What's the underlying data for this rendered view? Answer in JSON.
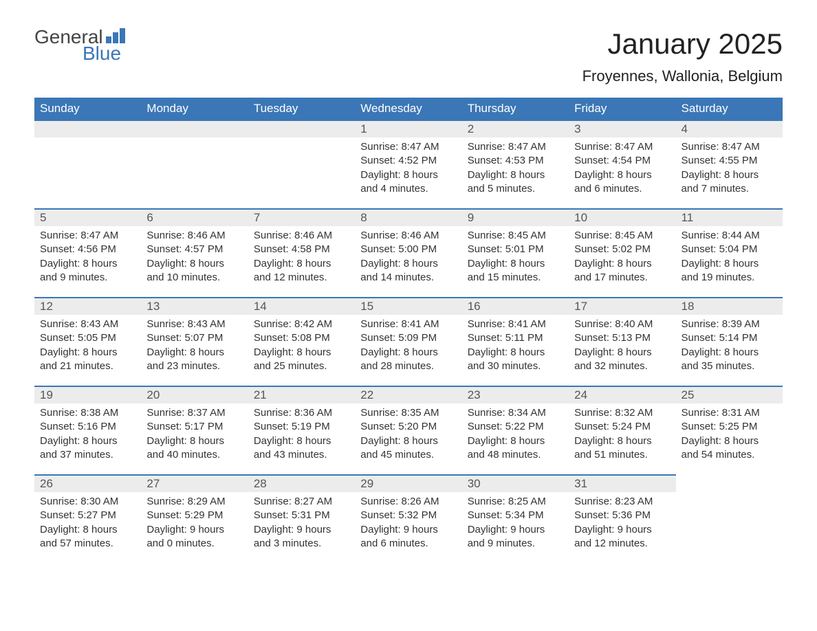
{
  "logo": {
    "text_general": "General",
    "text_blue": "Blue",
    "bar_color": "#3b77b6"
  },
  "header": {
    "month_title": "January 2025",
    "location": "Froyennes, Wallonia, Belgium"
  },
  "colors": {
    "header_bg": "#3b77b6",
    "header_text": "#ffffff",
    "date_bar_bg": "#ececec",
    "date_bar_border": "#3b77b6",
    "body_bg": "#ffffff",
    "text": "#333333"
  },
  "weekdays": [
    "Sunday",
    "Monday",
    "Tuesday",
    "Wednesday",
    "Thursday",
    "Friday",
    "Saturday"
  ],
  "weeks": [
    [
      {
        "date": "",
        "sunrise": "",
        "sunset": "",
        "daylight": ""
      },
      {
        "date": "",
        "sunrise": "",
        "sunset": "",
        "daylight": ""
      },
      {
        "date": "",
        "sunrise": "",
        "sunset": "",
        "daylight": ""
      },
      {
        "date": "1",
        "sunrise": "Sunrise: 8:47 AM",
        "sunset": "Sunset: 4:52 PM",
        "daylight": "Daylight: 8 hours and 4 minutes."
      },
      {
        "date": "2",
        "sunrise": "Sunrise: 8:47 AM",
        "sunset": "Sunset: 4:53 PM",
        "daylight": "Daylight: 8 hours and 5 minutes."
      },
      {
        "date": "3",
        "sunrise": "Sunrise: 8:47 AM",
        "sunset": "Sunset: 4:54 PM",
        "daylight": "Daylight: 8 hours and 6 minutes."
      },
      {
        "date": "4",
        "sunrise": "Sunrise: 8:47 AM",
        "sunset": "Sunset: 4:55 PM",
        "daylight": "Daylight: 8 hours and 7 minutes."
      }
    ],
    [
      {
        "date": "5",
        "sunrise": "Sunrise: 8:47 AM",
        "sunset": "Sunset: 4:56 PM",
        "daylight": "Daylight: 8 hours and 9 minutes."
      },
      {
        "date": "6",
        "sunrise": "Sunrise: 8:46 AM",
        "sunset": "Sunset: 4:57 PM",
        "daylight": "Daylight: 8 hours and 10 minutes."
      },
      {
        "date": "7",
        "sunrise": "Sunrise: 8:46 AM",
        "sunset": "Sunset: 4:58 PM",
        "daylight": "Daylight: 8 hours and 12 minutes."
      },
      {
        "date": "8",
        "sunrise": "Sunrise: 8:46 AM",
        "sunset": "Sunset: 5:00 PM",
        "daylight": "Daylight: 8 hours and 14 minutes."
      },
      {
        "date": "9",
        "sunrise": "Sunrise: 8:45 AM",
        "sunset": "Sunset: 5:01 PM",
        "daylight": "Daylight: 8 hours and 15 minutes."
      },
      {
        "date": "10",
        "sunrise": "Sunrise: 8:45 AM",
        "sunset": "Sunset: 5:02 PM",
        "daylight": "Daylight: 8 hours and 17 minutes."
      },
      {
        "date": "11",
        "sunrise": "Sunrise: 8:44 AM",
        "sunset": "Sunset: 5:04 PM",
        "daylight": "Daylight: 8 hours and 19 minutes."
      }
    ],
    [
      {
        "date": "12",
        "sunrise": "Sunrise: 8:43 AM",
        "sunset": "Sunset: 5:05 PM",
        "daylight": "Daylight: 8 hours and 21 minutes."
      },
      {
        "date": "13",
        "sunrise": "Sunrise: 8:43 AM",
        "sunset": "Sunset: 5:07 PM",
        "daylight": "Daylight: 8 hours and 23 minutes."
      },
      {
        "date": "14",
        "sunrise": "Sunrise: 8:42 AM",
        "sunset": "Sunset: 5:08 PM",
        "daylight": "Daylight: 8 hours and 25 minutes."
      },
      {
        "date": "15",
        "sunrise": "Sunrise: 8:41 AM",
        "sunset": "Sunset: 5:09 PM",
        "daylight": "Daylight: 8 hours and 28 minutes."
      },
      {
        "date": "16",
        "sunrise": "Sunrise: 8:41 AM",
        "sunset": "Sunset: 5:11 PM",
        "daylight": "Daylight: 8 hours and 30 minutes."
      },
      {
        "date": "17",
        "sunrise": "Sunrise: 8:40 AM",
        "sunset": "Sunset: 5:13 PM",
        "daylight": "Daylight: 8 hours and 32 minutes."
      },
      {
        "date": "18",
        "sunrise": "Sunrise: 8:39 AM",
        "sunset": "Sunset: 5:14 PM",
        "daylight": "Daylight: 8 hours and 35 minutes."
      }
    ],
    [
      {
        "date": "19",
        "sunrise": "Sunrise: 8:38 AM",
        "sunset": "Sunset: 5:16 PM",
        "daylight": "Daylight: 8 hours and 37 minutes."
      },
      {
        "date": "20",
        "sunrise": "Sunrise: 8:37 AM",
        "sunset": "Sunset: 5:17 PM",
        "daylight": "Daylight: 8 hours and 40 minutes."
      },
      {
        "date": "21",
        "sunrise": "Sunrise: 8:36 AM",
        "sunset": "Sunset: 5:19 PM",
        "daylight": "Daylight: 8 hours and 43 minutes."
      },
      {
        "date": "22",
        "sunrise": "Sunrise: 8:35 AM",
        "sunset": "Sunset: 5:20 PM",
        "daylight": "Daylight: 8 hours and 45 minutes."
      },
      {
        "date": "23",
        "sunrise": "Sunrise: 8:34 AM",
        "sunset": "Sunset: 5:22 PM",
        "daylight": "Daylight: 8 hours and 48 minutes."
      },
      {
        "date": "24",
        "sunrise": "Sunrise: 8:32 AM",
        "sunset": "Sunset: 5:24 PM",
        "daylight": "Daylight: 8 hours and 51 minutes."
      },
      {
        "date": "25",
        "sunrise": "Sunrise: 8:31 AM",
        "sunset": "Sunset: 5:25 PM",
        "daylight": "Daylight: 8 hours and 54 minutes."
      }
    ],
    [
      {
        "date": "26",
        "sunrise": "Sunrise: 8:30 AM",
        "sunset": "Sunset: 5:27 PM",
        "daylight": "Daylight: 8 hours and 57 minutes."
      },
      {
        "date": "27",
        "sunrise": "Sunrise: 8:29 AM",
        "sunset": "Sunset: 5:29 PM",
        "daylight": "Daylight: 9 hours and 0 minutes."
      },
      {
        "date": "28",
        "sunrise": "Sunrise: 8:27 AM",
        "sunset": "Sunset: 5:31 PM",
        "daylight": "Daylight: 9 hours and 3 minutes."
      },
      {
        "date": "29",
        "sunrise": "Sunrise: 8:26 AM",
        "sunset": "Sunset: 5:32 PM",
        "daylight": "Daylight: 9 hours and 6 minutes."
      },
      {
        "date": "30",
        "sunrise": "Sunrise: 8:25 AM",
        "sunset": "Sunset: 5:34 PM",
        "daylight": "Daylight: 9 hours and 9 minutes."
      },
      {
        "date": "31",
        "sunrise": "Sunrise: 8:23 AM",
        "sunset": "Sunset: 5:36 PM",
        "daylight": "Daylight: 9 hours and 12 minutes."
      },
      {
        "date": "",
        "sunrise": "",
        "sunset": "",
        "daylight": ""
      }
    ]
  ]
}
